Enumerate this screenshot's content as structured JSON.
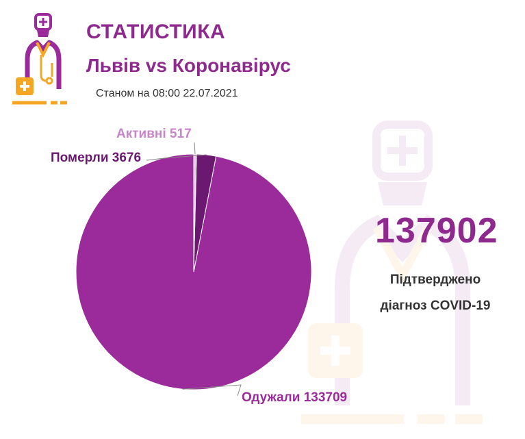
{
  "header": {
    "title": "СТАТИСТИКА",
    "subtitle": "Львів vs Коронавірус",
    "date": "Станом на 08:00 22.07.2021"
  },
  "summary": {
    "total": "137902",
    "caption_line1": "Підтверджено",
    "caption_line2": "діагноз COVID-19"
  },
  "colors": {
    "purple": "#9b2a9b",
    "orange": "#f5a623",
    "dark_purple": "#6b1970",
    "light_purple": "#c985c9",
    "title_purple": "#8e2a8e",
    "line": "#888888"
  },
  "icons": {
    "logo": "doctor-icon",
    "watermark": "doctor-watermark-icon"
  },
  "chart_data": {
    "type": "pie",
    "slices": [
      {
        "label": "Одужали 133709",
        "name": "Одужали",
        "value": 133709,
        "color": "#9b2a9b"
      },
      {
        "label": "Померли 3676",
        "name": "Померли",
        "value": 3676,
        "color": "#6b1970"
      },
      {
        "label": "Активні 517",
        "name": "Активні",
        "value": 517,
        "color": "#e9c8e9"
      }
    ]
  }
}
